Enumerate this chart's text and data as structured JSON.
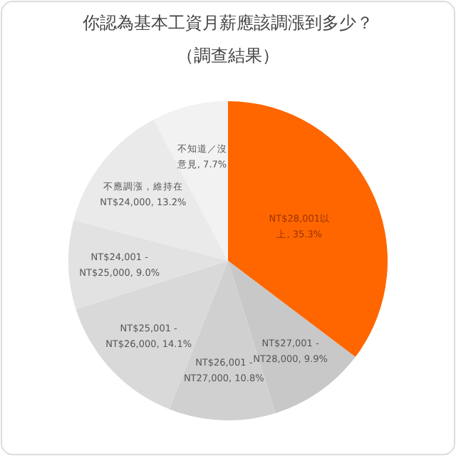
{
  "chart_data": {
    "type": "pie",
    "title": "你認為基本工資月薪應該調漲到多少？",
    "subtitle": "（調查結果）",
    "categories": [
      "NT$28,001以上",
      "NT$27,001 - NT28,000",
      "NT$26,001 - NT27,000",
      "NT$25,001 - NT$26,000",
      "NT$24,001 - NT$25,000",
      "不應調漲，維持在NT$24,000",
      "不知道／沒意見"
    ],
    "values": [
      35.3,
      9.9,
      10.8,
      14.1,
      9.0,
      13.2,
      7.7
    ],
    "value_labels": [
      "35.3%",
      "9.9%",
      "10.8%",
      "14.1%",
      "9.0%",
      "13.2%",
      "7.7%"
    ],
    "colors": [
      "#ff6600",
      "#c8c8c8",
      "#d0d0d0",
      "#d9d9d9",
      "#e2e2e2",
      "#eaeaea",
      "#f2f2f2"
    ]
  }
}
